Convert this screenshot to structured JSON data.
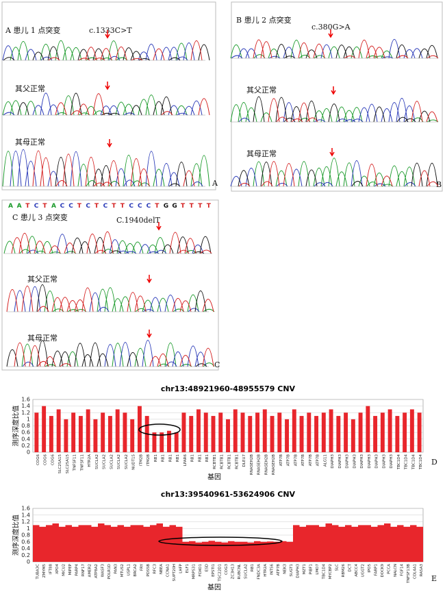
{
  "panels": [
    {
      "label": "A",
      "title": "A 患儿 1 点突变",
      "mutation": "c.1333C>T",
      "father": "其父正常",
      "mother": "其母正常"
    },
    {
      "label": "B",
      "title": "B 患儿 2 点突变",
      "mutation": "c.380G>A",
      "father": "其父正常",
      "mother": "其母正常"
    },
    {
      "label": "C",
      "title": "C 患儿 3 点突变",
      "mutation": "C.1940delT",
      "father": "其父正常",
      "mother": "其母正常",
      "sequence": [
        "A",
        "A",
        "T",
        "C",
        "T",
        "A",
        "C",
        "C",
        "T",
        "C",
        "T",
        "C",
        "T",
        "T",
        "C",
        "C",
        "C",
        "T",
        "G",
        "G",
        "T",
        "T",
        "T",
        "T"
      ]
    }
  ],
  "chart_data": [
    {
      "type": "bar",
      "panel_label": "D",
      "title": "chr13:48921960-48955579 CNV",
      "y_label": "测序深度比值",
      "x_label": "基因",
      "color": "#e8262c",
      "ylim": [
        0,
        1.6
      ],
      "yticks": [
        0,
        0.2,
        0.4,
        0.6,
        0.8,
        1,
        1.2,
        1.4,
        1.6
      ],
      "grid": true,
      "categories": [
        "COG6",
        "COG6",
        "COG6",
        "SLC25A15",
        "SLC25A15",
        "TNFSF11",
        "TNFSF11",
        "HTR2A",
        "SUCLA2",
        "SUCLA2",
        "SUCLA2",
        "SUCLA2",
        "SUCLA2",
        "NUDT15",
        "ITM2B",
        "ITM2B",
        "RB1",
        "RB1",
        "RB1",
        "RB1",
        "LPAR6",
        "RB1",
        "RB1",
        "RB1",
        "RCBTB1",
        "RCBTB1",
        "RCBTB1",
        "RCBTB1",
        "DLEU7",
        "RNASEH2B",
        "RNASEH2B",
        "RNASEH2B",
        "RNASEH2B",
        "ATP7B",
        "ATP7B",
        "ATP7B",
        "ATP7B",
        "ATP7B",
        "ATP7B",
        "ALG11",
        "DIAPH3",
        "DIAPH3",
        "DIAPH3",
        "DIAPH3",
        "DIAPH3",
        "DIAPH3",
        "DIAPH3",
        "DIAPH3",
        "DIAPH3",
        "TBC1D4",
        "TBC1D4",
        "TBC1D4",
        "TBC1D4"
      ],
      "values": [
        1.2,
        1.4,
        1.1,
        1.3,
        1.0,
        1.2,
        1.1,
        1.3,
        1.0,
        1.2,
        1.1,
        1.3,
        1.2,
        1.0,
        1.4,
        1.1,
        0.6,
        0.6,
        0.65,
        0.6,
        1.2,
        1.1,
        1.3,
        1.2,
        1.1,
        1.2,
        1.0,
        1.3,
        1.2,
        1.1,
        1.2,
        1.3,
        1.1,
        1.2,
        1.0,
        1.3,
        1.1,
        1.2,
        1.1,
        1.2,
        1.3,
        1.1,
        1.2,
        1.0,
        1.2,
        1.4,
        1.1,
        1.2,
        1.3,
        1.1,
        1.2,
        1.3,
        1.2
      ]
    },
    {
      "type": "bar",
      "panel_label": "E",
      "title": "chr13:39540961-53624906 CNV",
      "y_label": "测序深度比值",
      "x_label": "基因",
      "color": "#e8262c",
      "ylim": [
        0,
        1.6
      ],
      "yticks": [
        0,
        0.2,
        0.4,
        0.6,
        0.8,
        1,
        1.2,
        1.4,
        1.6
      ],
      "grid": true,
      "categories": [
        "TUBA3C",
        "ZMYM5",
        "IFT88",
        "XPO4",
        "MICU2",
        "MIPEP",
        "PARP4",
        "RNF17",
        "AMER2",
        "ATP8A2",
        "WASF3",
        "POLR1D",
        "PAN3",
        "MTUS2",
        "USPL1",
        "BRCA2",
        "FRY",
        "PDS5B",
        "RFC3",
        "NBEA",
        "CCNA1",
        "SUPT20H",
        "LHFP",
        "ELF1",
        "MRPS31",
        "FOXO1",
        "ESD",
        "EPSTI1",
        "TSC22D1",
        "COG3",
        "ZC3H13",
        "RUBCNL",
        "SUCLA2",
        "RB1",
        "FNDC3A",
        "HTR2A",
        "INTS6",
        "ATP7B",
        "NEK3",
        "SUGT1",
        "DIAPH3",
        "MZT1",
        "PIBF1",
        "LMO7",
        "TBC1D4",
        "MYCBP2",
        "SLC",
        "RBM26",
        "DCT",
        "ABCC4",
        "UGGT2",
        "IPO5",
        "FARP1",
        "DOCK9",
        "PCCA",
        "NALCN",
        "FGF14",
        "TNFSF13B",
        "COL4A1",
        "RASA3"
      ],
      "values": [
        1.1,
        1.05,
        1.1,
        1.15,
        1.05,
        1.1,
        1.05,
        1.1,
        1.1,
        1.05,
        1.15,
        1.1,
        1.05,
        1.1,
        1.05,
        1.1,
        1.1,
        1.05,
        1.1,
        1.15,
        1.05,
        1.1,
        1.05,
        0.6,
        0.62,
        0.58,
        0.6,
        0.63,
        0.6,
        0.58,
        0.62,
        0.6,
        0.6,
        0.58,
        0.62,
        0.6,
        0.61,
        0.6,
        0.62,
        0.6,
        1.1,
        1.05,
        1.1,
        1.1,
        1.05,
        1.15,
        1.1,
        1.05,
        1.1,
        1.05,
        1.1,
        1.1,
        1.05,
        1.1,
        1.15,
        1.05,
        1.1,
        1.05,
        1.1,
        1.05
      ]
    }
  ]
}
